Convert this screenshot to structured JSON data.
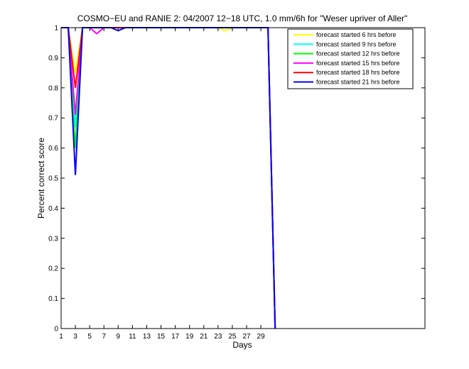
{
  "chart_data": {
    "type": "line",
    "title": "COSMO−EU and RANIE 2: 04/2007 12−18 UTC, 1.0 mm/6h for \"Weser upriver of Aller\"",
    "xlabel": "Days",
    "ylabel": "Percent correct score",
    "xlim": [
      1,
      52
    ],
    "ylim": [
      0,
      1
    ],
    "xticks": [
      1,
      3,
      5,
      7,
      9,
      11,
      13,
      15,
      17,
      19,
      21,
      23,
      25,
      27,
      29
    ],
    "yticks": [
      0,
      0.1,
      0.2,
      0.3,
      0.4,
      0.5,
      0.6,
      0.7,
      0.8,
      0.9,
      1
    ],
    "ytick_labels": [
      "0",
      "0.1",
      "0.2",
      "0.3",
      "0.4",
      "0.5",
      "0.6",
      "0.7",
      "0.8",
      "0.9",
      "1"
    ],
    "grid": false,
    "legend_position": "top-right",
    "series": [
      {
        "name": "forecast started 6 hrs before",
        "color": "#ffff00",
        "x": [
          1,
          2,
          3,
          4,
          5,
          6,
          7,
          8,
          9,
          10,
          11,
          12,
          13,
          14,
          15,
          16,
          17,
          18,
          19,
          20,
          21,
          22,
          23,
          24,
          25,
          26,
          27,
          28,
          29,
          30,
          31
        ],
        "y": [
          1,
          1,
          0.85,
          1,
          1,
          1,
          1,
          1,
          1,
          1,
          1,
          1,
          1,
          1,
          1,
          1,
          1,
          1,
          1,
          1,
          1,
          1,
          1,
          0.99,
          1,
          1,
          1,
          1,
          1,
          1,
          0
        ]
      },
      {
        "name": "forecast started 9 hrs before",
        "color": "#00ffff",
        "x": [
          1,
          2,
          3,
          4,
          5,
          6,
          7,
          8,
          9,
          10,
          11,
          12,
          13,
          14,
          15,
          16,
          17,
          18,
          19,
          20,
          21,
          22,
          23,
          24,
          25,
          26,
          27,
          28,
          29,
          30,
          31
        ],
        "y": [
          1,
          1,
          0.67,
          1,
          1,
          1,
          1,
          1,
          1,
          1,
          1,
          1,
          1,
          1,
          1,
          1,
          1,
          1,
          1,
          1,
          1,
          1,
          1,
          1,
          1,
          1,
          1,
          1,
          1,
          1,
          0
        ]
      },
      {
        "name": "forecast started 12 hrs before",
        "color": "#00ff00",
        "x": [
          1,
          2,
          3,
          4,
          5,
          6,
          7,
          8,
          9,
          10,
          11,
          12,
          13,
          14,
          15,
          16,
          17,
          18,
          19,
          20,
          21,
          22,
          23,
          24,
          25,
          26,
          27,
          28,
          29,
          30,
          31
        ],
        "y": [
          1,
          1,
          0.6,
          1,
          1,
          1,
          1,
          1,
          1,
          1,
          1,
          1,
          1,
          1,
          1,
          1,
          1,
          1,
          1,
          1,
          1,
          1,
          1,
          1,
          1,
          1,
          1,
          1,
          1,
          1,
          0
        ]
      },
      {
        "name": "forecast started 15 hrs before",
        "color": "#ff00ff",
        "x": [
          1,
          2,
          3,
          4,
          5,
          6,
          7,
          8,
          9,
          10,
          11,
          12,
          13,
          14,
          15,
          16,
          17,
          18,
          19,
          20,
          21,
          22,
          23,
          24,
          25,
          26,
          27,
          28,
          29,
          30,
          31
        ],
        "y": [
          1,
          1,
          0.71,
          1,
          1,
          0.98,
          1,
          1,
          1,
          1,
          1,
          1,
          1,
          1,
          1,
          1,
          1,
          1,
          1,
          1,
          1,
          1,
          1,
          1,
          1,
          1,
          1,
          1,
          1,
          1,
          0
        ]
      },
      {
        "name": "forecast started 18 hrs before",
        "color": "#ff0000",
        "x": [
          1,
          2,
          3,
          4,
          5,
          6,
          7,
          8,
          9,
          10,
          11,
          12,
          13,
          14,
          15,
          16,
          17,
          18,
          19,
          20,
          21,
          22,
          23,
          24,
          25,
          26,
          27,
          28,
          29,
          30,
          31
        ],
        "y": [
          1,
          1,
          0.8,
          1,
          1,
          1,
          1,
          1,
          1,
          1,
          1,
          1,
          1,
          1,
          1,
          1,
          1,
          1,
          1,
          1,
          1,
          1,
          1,
          1,
          1,
          1,
          1,
          1,
          1,
          1,
          0
        ]
      },
      {
        "name": "forecast started 21 hrs before",
        "color": "#0000ff",
        "x": [
          1,
          2,
          3,
          4,
          5,
          6,
          7,
          8,
          9,
          10,
          11,
          12,
          13,
          14,
          15,
          16,
          17,
          18,
          19,
          20,
          21,
          22,
          23,
          24,
          25,
          26,
          27,
          28,
          29,
          30,
          31
        ],
        "y": [
          1,
          1,
          0.51,
          1,
          1,
          1,
          1,
          1,
          0.99,
          1,
          1,
          1,
          1,
          1,
          1,
          1,
          1,
          1,
          1,
          1,
          1,
          1,
          1,
          1,
          1,
          1,
          1,
          1,
          1,
          1,
          0
        ]
      }
    ]
  }
}
